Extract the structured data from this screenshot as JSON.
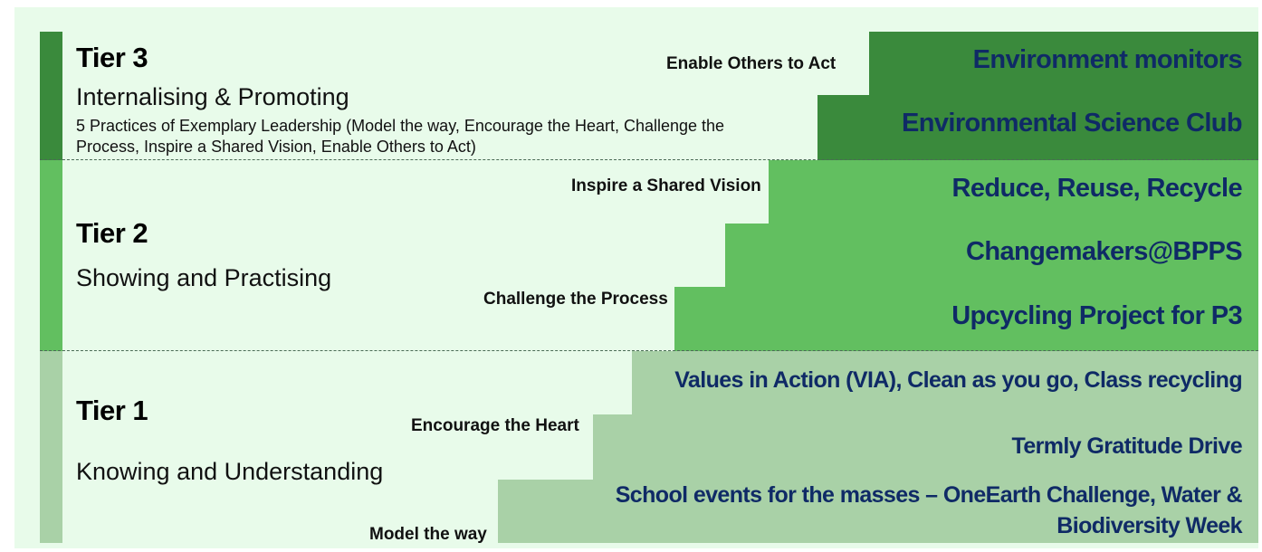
{
  "colors": {
    "background": "#e8fbea",
    "tier3": "#3a8a3c",
    "tier2": "#62bf60",
    "tier1": "#a9d1a7",
    "activity_text": "#0f2a66"
  },
  "tiers": [
    {
      "title": "Tier 3",
      "subtitle": "Internalising & Promoting",
      "description": "5 Practices of Exemplary Leadership (Model the way, Encourage the Heart, Challenge the Process, Inspire a Shared Vision, Enable Others to Act)"
    },
    {
      "title": "Tier 2",
      "subtitle": "Showing and Practising"
    },
    {
      "title": "Tier 1",
      "subtitle": "Knowing and Understanding"
    }
  ],
  "practices": {
    "enable": "Enable Others to Act",
    "inspire": "Inspire a Shared Vision",
    "challenge": "Challenge the Process",
    "encourage": "Encourage the Heart",
    "model": "Model the way"
  },
  "activities": {
    "environment_monitors": "Environment monitors",
    "science_club": "Environmental Science Club",
    "reduce_reuse_recycle": "Reduce, Reuse, Recycle",
    "changemakers": "Changemakers@BPPS",
    "upcycling": "Upcycling Project for P3",
    "via": "Values in Action (VIA), Clean as you go, Class recycling",
    "gratitude": "Termly Gratitude Drive",
    "school_events_line1": "School events for the masses – OneEarth Challenge, Water &",
    "school_events_line2": "Biodiversity Week"
  }
}
